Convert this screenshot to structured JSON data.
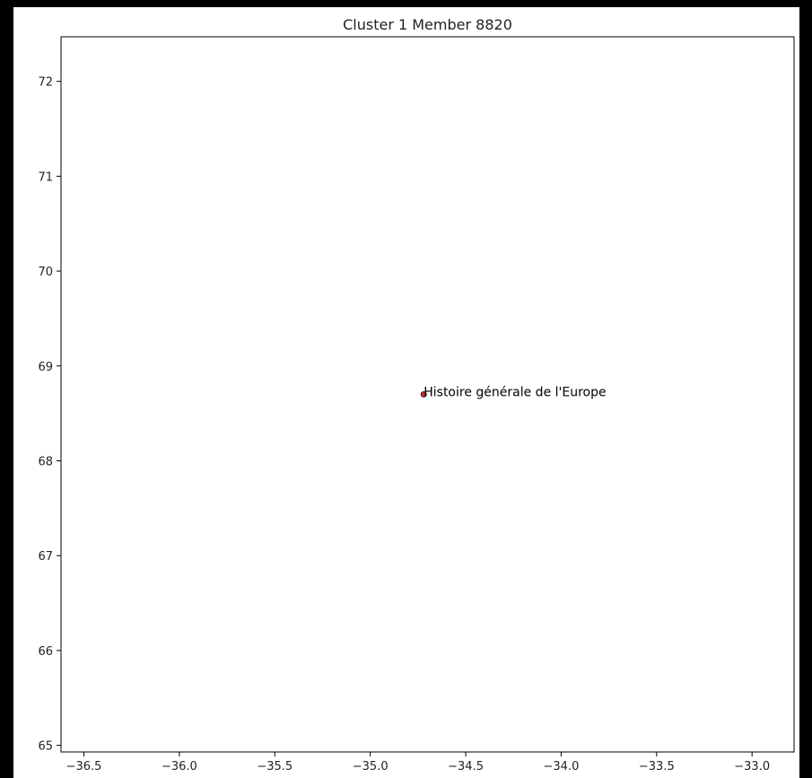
{
  "chart_data": {
    "type": "scatter",
    "title": "Cluster 1 Member 8820",
    "xlabel": "",
    "ylabel": "",
    "xlim": [
      -36.62,
      -32.78
    ],
    "ylim": [
      64.93,
      72.47
    ],
    "xticks": [
      -36.5,
      -36.0,
      -35.5,
      -35.0,
      -34.5,
      -34.0,
      -33.5,
      -33.0
    ],
    "xtick_labels": [
      "−36.5",
      "−36.0",
      "−35.5",
      "−35.0",
      "−34.5",
      "−34.0",
      "−33.5",
      "−33.0"
    ],
    "yticks": [
      65,
      66,
      67,
      68,
      69,
      70,
      71,
      72
    ],
    "ytick_labels": [
      "65",
      "66",
      "67",
      "68",
      "69",
      "70",
      "71",
      "72"
    ],
    "grid": false,
    "points": [
      {
        "x": -34.72,
        "y": 68.7,
        "label": "Histoire générale de l'Europe"
      }
    ],
    "marker_color": "#d62728",
    "frame_color": "#000000"
  }
}
